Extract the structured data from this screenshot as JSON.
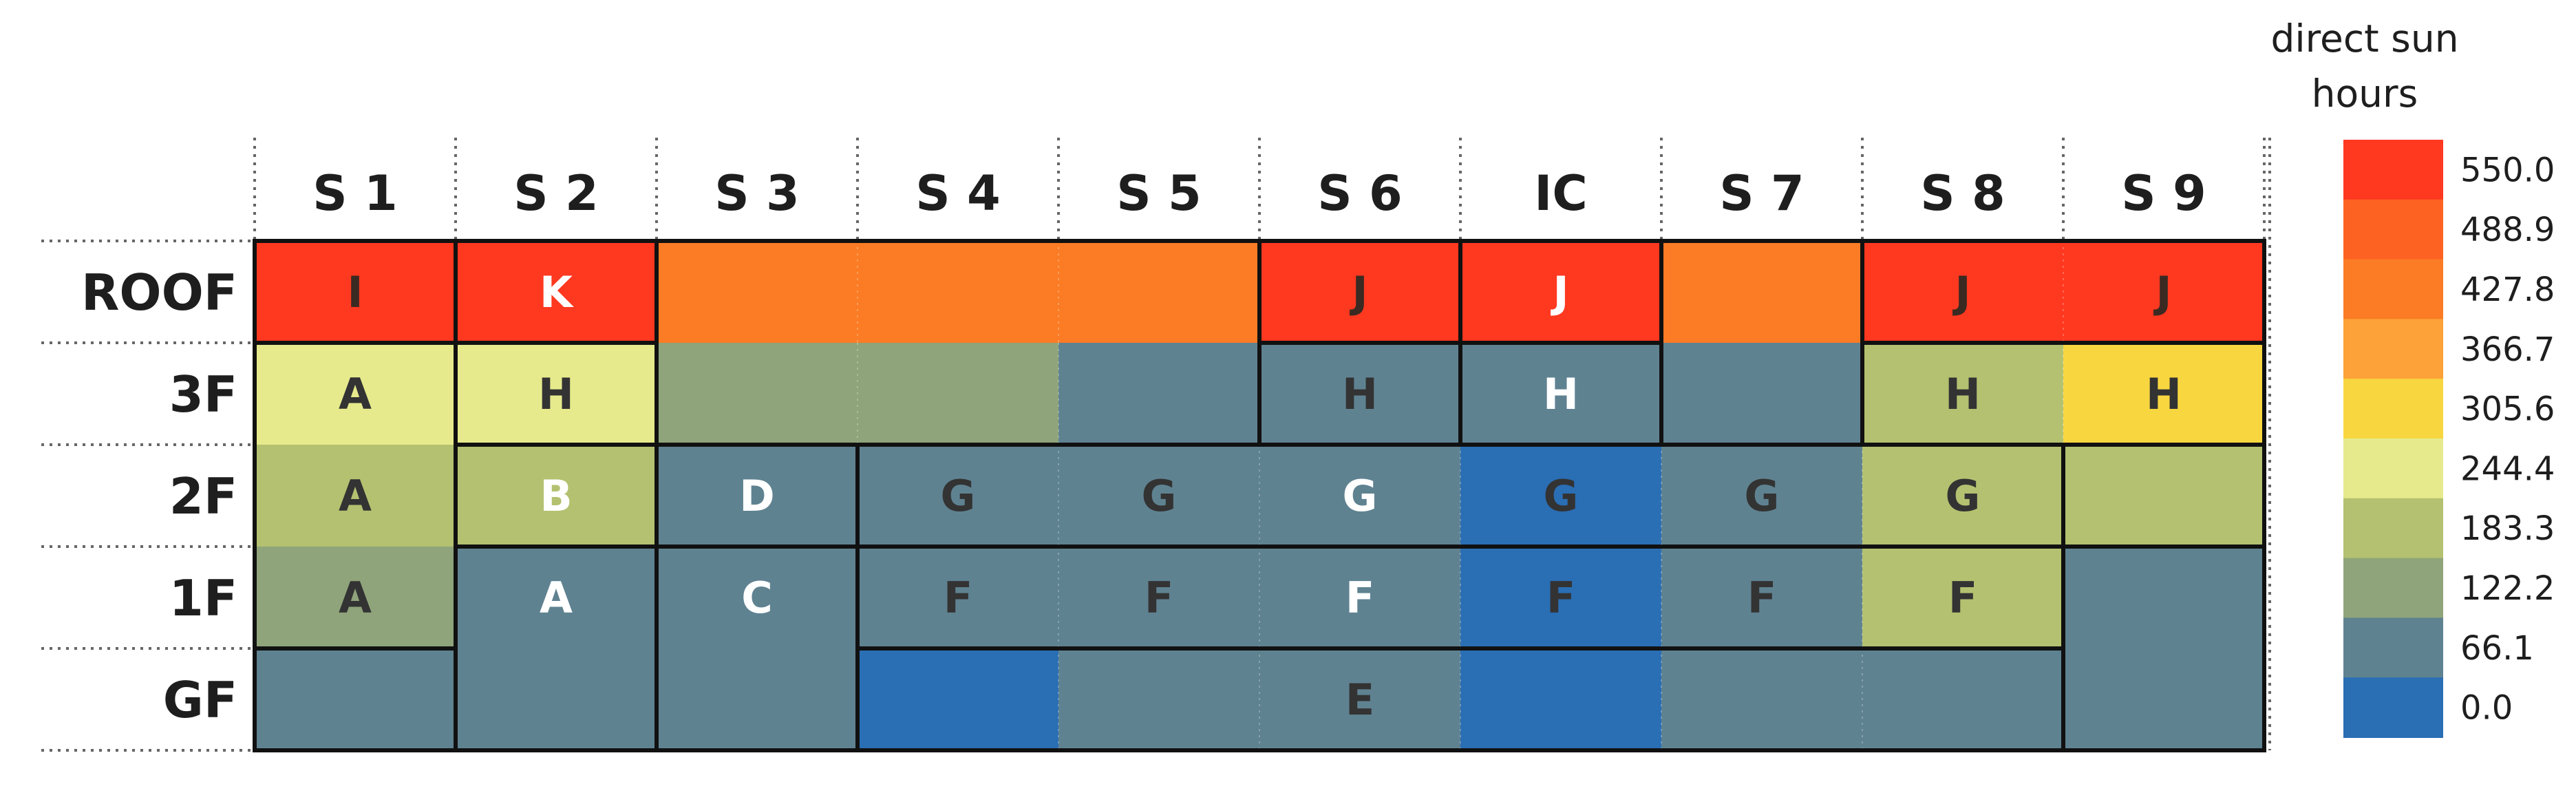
{
  "chart_data": {
    "type": "heatmap",
    "title": "",
    "columns": [
      "S 1",
      "S 2",
      "S 3",
      "S 4",
      "S 5",
      "S 6",
      "IC",
      "S 7",
      "S 8",
      "S 9"
    ],
    "rows": [
      "ROOF",
      "3F",
      "2F",
      "1F",
      "GF"
    ],
    "colorbar": {
      "title_line1": "direct sun",
      "title_line2": "hours",
      "min": 0.0,
      "max": 550.0,
      "tick_labels": [
        "550.0",
        "488.9",
        "427.8",
        "366.7",
        "305.6",
        "244.4",
        "183.3",
        "122.2",
        "66.1",
        "0.0"
      ],
      "colors_top_to_bottom": [
        "#ff3820",
        "#fd6222",
        "#fb7c25",
        "#fca238",
        "#f8d640",
        "#e6ea8c",
        "#b4c170",
        "#8fa47a",
        "#5f8291",
        "#2a6eb4"
      ]
    },
    "cells": [
      [
        {
          "value": 550,
          "color": "#ff3820",
          "label": "I",
          "label_color": "#3a2a22"
        },
        {
          "value": 550,
          "color": "#ff3820",
          "label": "K",
          "label_color": "#ffffff"
        },
        {
          "value": 430,
          "color": "#fb7c25",
          "label": "",
          "label_color": "#333333"
        },
        {
          "value": 430,
          "color": "#fb7c25",
          "label": "",
          "label_color": "#333333"
        },
        {
          "value": 430,
          "color": "#fb7c25",
          "label": "",
          "label_color": "#333333"
        },
        {
          "value": 550,
          "color": "#ff3820",
          "label": "J",
          "label_color": "#3a2a22"
        },
        {
          "value": 550,
          "color": "#ff3820",
          "label": "J",
          "label_color": "#ffffff"
        },
        {
          "value": 430,
          "color": "#fb7c25",
          "label": "",
          "label_color": "#333333"
        },
        {
          "value": 550,
          "color": "#ff3820",
          "label": "J",
          "label_color": "#3a2a22"
        },
        {
          "value": 550,
          "color": "#ff3820",
          "label": "J",
          "label_color": "#3a2a22"
        }
      ],
      [
        {
          "value": 244,
          "color": "#e6ea8c",
          "label": "A",
          "label_color": "#333333"
        },
        {
          "value": 244,
          "color": "#e6ea8c",
          "label": "H",
          "label_color": "#333333"
        },
        {
          "value": 122,
          "color": "#8fa47a",
          "label": "",
          "label_color": "#333333"
        },
        {
          "value": 122,
          "color": "#8fa47a",
          "label": "",
          "label_color": "#333333"
        },
        {
          "value": 66,
          "color": "#5f8291",
          "label": "",
          "label_color": "#333333"
        },
        {
          "value": 66,
          "color": "#5f8291",
          "label": "H",
          "label_color": "#333333"
        },
        {
          "value": 66,
          "color": "#5f8291",
          "label": "H",
          "label_color": "#ffffff"
        },
        {
          "value": 66,
          "color": "#5f8291",
          "label": "",
          "label_color": "#333333"
        },
        {
          "value": 183,
          "color": "#b4c170",
          "label": "H",
          "label_color": "#333333"
        },
        {
          "value": 305,
          "color": "#f8d640",
          "label": "H",
          "label_color": "#333333"
        }
      ],
      [
        {
          "value": 183,
          "color": "#b4c170",
          "label": "A",
          "label_color": "#333333"
        },
        {
          "value": 183,
          "color": "#b4c170",
          "label": "B",
          "label_color": "#ffffff"
        },
        {
          "value": 66,
          "color": "#5f8291",
          "label": "D",
          "label_color": "#ffffff"
        },
        {
          "value": 66,
          "color": "#5f8291",
          "label": "G",
          "label_color": "#333333"
        },
        {
          "value": 66,
          "color": "#5f8291",
          "label": "G",
          "label_color": "#333333"
        },
        {
          "value": 66,
          "color": "#5f8291",
          "label": "G",
          "label_color": "#ffffff"
        },
        {
          "value": 0,
          "color": "#2a6eb4",
          "label": "G",
          "label_color": "#333333"
        },
        {
          "value": 66,
          "color": "#5f8291",
          "label": "G",
          "label_color": "#333333"
        },
        {
          "value": 183,
          "color": "#b4c170",
          "label": "G",
          "label_color": "#333333"
        },
        {
          "value": 183,
          "color": "#b4c170",
          "label": "",
          "label_color": "#333333"
        }
      ],
      [
        {
          "value": 122,
          "color": "#8fa47a",
          "label": "A",
          "label_color": "#333333"
        },
        {
          "value": 66,
          "color": "#5f8291",
          "label": "A",
          "label_color": "#ffffff"
        },
        {
          "value": 66,
          "color": "#5f8291",
          "label": "C",
          "label_color": "#ffffff"
        },
        {
          "value": 66,
          "color": "#5f8291",
          "label": "F",
          "label_color": "#333333"
        },
        {
          "value": 66,
          "color": "#5f8291",
          "label": "F",
          "label_color": "#333333"
        },
        {
          "value": 66,
          "color": "#5f8291",
          "label": "F",
          "label_color": "#ffffff"
        },
        {
          "value": 0,
          "color": "#2a6eb4",
          "label": "F",
          "label_color": "#333333"
        },
        {
          "value": 66,
          "color": "#5f8291",
          "label": "F",
          "label_color": "#333333"
        },
        {
          "value": 183,
          "color": "#b4c170",
          "label": "F",
          "label_color": "#333333"
        },
        {
          "value": 66,
          "color": "#5f8291",
          "label": "",
          "label_color": "#333333"
        }
      ],
      [
        {
          "value": 66,
          "color": "#5f8291",
          "label": "",
          "label_color": "#333333"
        },
        {
          "value": 66,
          "color": "#5f8291",
          "label": "",
          "label_color": "#333333"
        },
        {
          "value": 66,
          "color": "#5f8291",
          "label": "",
          "label_color": "#333333"
        },
        {
          "value": 0,
          "color": "#2a6eb4",
          "label": "",
          "label_color": "#333333"
        },
        {
          "value": 66,
          "color": "#5f8291",
          "label": "",
          "label_color": "#333333"
        },
        {
          "value": 66,
          "color": "#5f8291",
          "label": "E",
          "label_color": "#333333"
        },
        {
          "value": 0,
          "color": "#2a6eb4",
          "label": "",
          "label_color": "#333333"
        },
        {
          "value": 66,
          "color": "#5f8291",
          "label": "",
          "label_color": "#333333"
        },
        {
          "value": 66,
          "color": "#5f8291",
          "label": "",
          "label_color": "#333333"
        },
        {
          "value": 66,
          "color": "#5f8291",
          "label": "",
          "label_color": "#333333"
        }
      ]
    ],
    "zones": [
      {
        "label": "I",
        "row": 0,
        "col": 0,
        "rowspan": 1,
        "colspan": 1
      },
      {
        "label": "K",
        "row": 0,
        "col": 1,
        "rowspan": 1,
        "colspan": 1
      },
      {
        "label": "J",
        "row": 0,
        "col": 5,
        "rowspan": 1,
        "colspan": 1
      },
      {
        "label": "J",
        "row": 0,
        "col": 6,
        "rowspan": 1,
        "colspan": 1
      },
      {
        "label": "J",
        "row": 0,
        "col": 8,
        "rowspan": 1,
        "colspan": 2
      },
      {
        "label": "A",
        "row": 1,
        "col": 0,
        "rowspan": 3,
        "colspan": 1
      },
      {
        "label": "H",
        "row": 1,
        "col": 1,
        "rowspan": 1,
        "colspan": 1
      },
      {
        "label": "H",
        "row": 1,
        "col": 5,
        "rowspan": 1,
        "colspan": 1
      },
      {
        "label": "H",
        "row": 1,
        "col": 6,
        "rowspan": 1,
        "colspan": 1
      },
      {
        "label": "H",
        "row": 1,
        "col": 8,
        "rowspan": 1,
        "colspan": 2
      },
      {
        "label": "B",
        "row": 2,
        "col": 1,
        "rowspan": 1,
        "colspan": 1
      },
      {
        "label": "D",
        "row": 2,
        "col": 2,
        "rowspan": 1,
        "colspan": 1
      },
      {
        "label": "G",
        "row": 2,
        "col": 3,
        "rowspan": 1,
        "colspan": 6
      },
      {
        "label": "A",
        "row": 3,
        "col": 1,
        "rowspan": 2,
        "colspan": 1
      },
      {
        "label": "C",
        "row": 3,
        "col": 2,
        "rowspan": 2,
        "colspan": 1
      },
      {
        "label": "F",
        "row": 3,
        "col": 3,
        "rowspan": 1,
        "colspan": 6
      },
      {
        "label": "E",
        "row": 4,
        "col": 3,
        "rowspan": 1,
        "colspan": 6
      },
      {
        "label": "",
        "row": 2,
        "col": 9,
        "rowspan": 1,
        "colspan": 1
      },
      {
        "label": "",
        "row": 3,
        "col": 9,
        "rowspan": 2,
        "colspan": 1
      }
    ]
  }
}
